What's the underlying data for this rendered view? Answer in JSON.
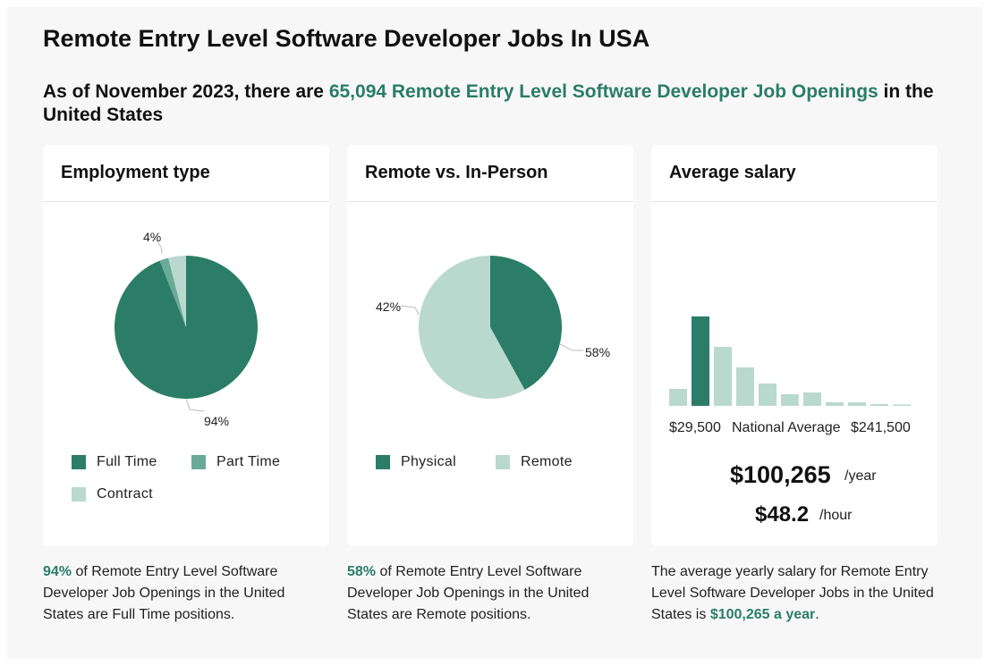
{
  "title": "Remote Entry Level Software Developer Jobs In USA",
  "headline": {
    "prefix": "As of November 2023, there are",
    "highlight": "65,094 Remote Entry Level Software Developer Job Openings",
    "suffix": "in the United States"
  },
  "colors": {
    "dark": "#2b7d67",
    "mid": "#6aaa99",
    "light": "#b9d9cf",
    "accent": "#2b7d67"
  },
  "cards": {
    "employment": {
      "title": "Employment type",
      "legend": [
        "Full Time",
        "Part Time",
        "Contract"
      ],
      "caption": {
        "strong": "94%",
        "rest": "of Remote Entry Level Software Developer Job Openings in the United States are Full Time positions."
      }
    },
    "remote": {
      "title": "Remote vs. In-Person",
      "legend": [
        "Physical",
        "Remote"
      ],
      "caption": {
        "strong": "58%",
        "rest": "of Remote Entry Level Software Developer Job Openings in the United States are Remote positions."
      }
    },
    "salary": {
      "title": "Average salary",
      "min_label": "$29,500",
      "mid_label": "National Average",
      "max_label": "$241,500",
      "yearly": "$100,265",
      "yearly_unit": "/year",
      "hourly": "$48.2",
      "hourly_unit": "/hour",
      "caption": {
        "pre": "The average yearly salary for Remote Entry Level Software Developer Jobs in the United States is",
        "strong": "$100,265 a year",
        "post": "."
      }
    }
  },
  "chart_data": [
    {
      "type": "pie",
      "title": "Employment type",
      "labels": [
        "Full Time",
        "Part Time",
        "Contract"
      ],
      "values": [
        94,
        2,
        4
      ],
      "data_labels": [
        "94%",
        "",
        "4%"
      ]
    },
    {
      "type": "pie",
      "title": "Remote vs. In-Person",
      "labels": [
        "Physical",
        "Remote"
      ],
      "values": [
        42,
        58
      ],
      "data_labels": [
        "42%",
        "58%"
      ]
    },
    {
      "type": "bar",
      "title": "Average salary",
      "x_range_labels": [
        "$29,500",
        "$241,500"
      ],
      "values": [
        19,
        100,
        66,
        43,
        25,
        13,
        15,
        4,
        4,
        2,
        1
      ],
      "highlight_index": 1
    }
  ]
}
